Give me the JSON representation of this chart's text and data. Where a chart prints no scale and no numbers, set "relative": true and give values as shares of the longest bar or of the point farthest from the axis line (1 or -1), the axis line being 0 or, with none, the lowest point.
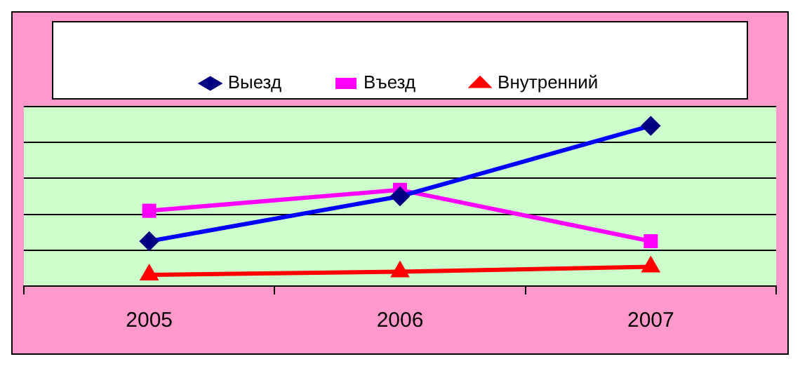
{
  "chart_data": {
    "type": "line",
    "relative": true,
    "categories": [
      "2005",
      "2006",
      "2007"
    ],
    "series": [
      {
        "name": "Выезд",
        "color": "#0000ff",
        "marker": "diamond",
        "values": [
          0.28,
          0.56,
          1
        ]
      },
      {
        "name": "Въезд",
        "color": "#ff00ff",
        "marker": "square",
        "values": [
          0.47,
          0.6,
          0.28
        ]
      },
      {
        "name": "Внутренний",
        "color": "#ff0000",
        "marker": "triangle",
        "values": [
          0.07,
          0.09,
          0.12
        ]
      }
    ],
    "grid": "y",
    "legend": "top",
    "line_style": "solid"
  }
}
